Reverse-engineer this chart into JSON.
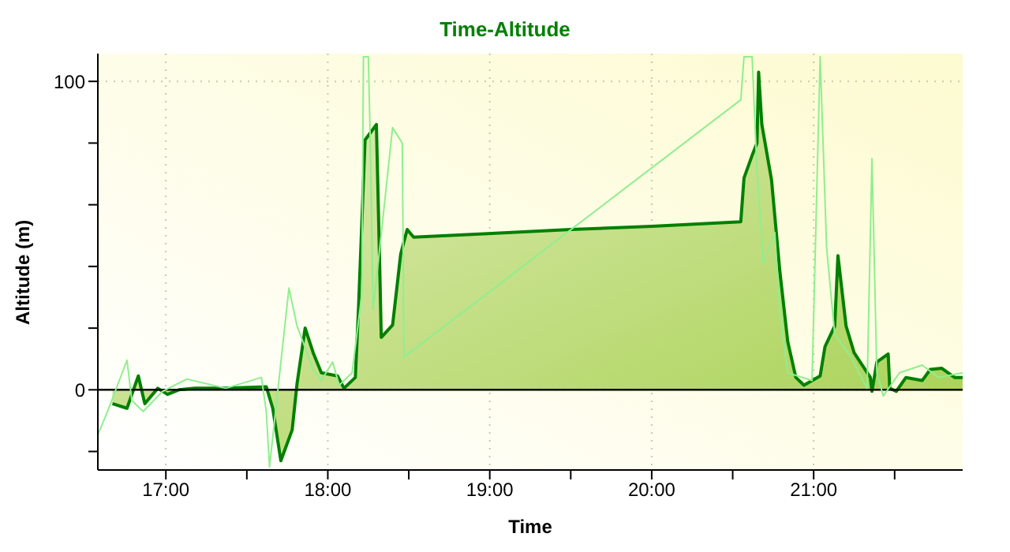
{
  "chart_data": {
    "type": "area",
    "title": "Time-Altitude",
    "xlabel": "Time",
    "ylabel": "Altitude (m)",
    "xlim": [
      16.58,
      21.92
    ],
    "ylim": [
      -26,
      109
    ],
    "xticks": [
      {
        "value": 17,
        "label": "17:00"
      },
      {
        "value": 17.5,
        "label": null
      },
      {
        "value": 18,
        "label": "18:00"
      },
      {
        "value": 18.5,
        "label": null
      },
      {
        "value": 19,
        "label": "19:00"
      },
      {
        "value": 19.5,
        "label": null
      },
      {
        "value": 20,
        "label": "20:00"
      },
      {
        "value": 20.5,
        "label": null
      },
      {
        "value": 21,
        "label": "21:00"
      },
      {
        "value": 21.5,
        "label": null
      }
    ],
    "yticks": [
      {
        "value": -20,
        "label": null
      },
      0,
      {
        "value": 20,
        "label": null
      },
      {
        "value": 40,
        "label": null
      },
      {
        "value": 60,
        "label": null
      },
      {
        "value": 80,
        "label": null
      },
      100
    ],
    "grid": true,
    "legend": false,
    "marker": "none",
    "line_style": "solid",
    "ref_lines": [
      {
        "axis": "y",
        "value": 0,
        "label": null,
        "color": "#000000"
      }
    ],
    "series": [
      {
        "color": "#008000",
        "x": [
          16.67,
          16.76,
          16.83,
          16.87,
          16.95,
          17.01,
          17.08,
          17.18,
          17.37,
          17.62,
          17.66,
          17.71,
          17.78,
          17.81,
          17.86,
          17.91,
          17.96,
          18.06,
          18.1,
          18.17,
          18.19,
          18.23,
          18.3,
          18.32,
          18.33,
          18.4,
          18.45,
          18.49,
          18.53,
          18.94,
          19.5,
          20,
          20.55,
          20.57,
          20.62,
          20.65,
          20.66,
          20.68,
          20.74,
          20.79,
          20.84,
          20.89,
          20.94,
          21.04,
          21.07,
          21.13,
          21.15,
          21.2,
          21.25,
          21.35,
          21.36,
          21.39,
          21.46,
          21.47,
          21.51,
          21.57,
          21.67,
          21.72,
          21.79,
          21.87,
          21.92
        ],
        "values": [
          -4.5,
          -6,
          4.5,
          -4.5,
          0.5,
          -1.5,
          0,
          0.5,
          0.5,
          1,
          -6,
          -23,
          -13,
          2,
          20,
          12,
          5.5,
          4.5,
          0.5,
          4,
          27,
          81,
          86,
          41,
          17,
          21,
          44,
          52,
          49.5,
          50.5,
          52,
          53,
          54.5,
          68.7,
          76,
          80,
          103,
          86,
          68,
          39,
          15.6,
          4,
          1.5,
          4.5,
          14,
          20.7,
          43.5,
          20.7,
          12,
          4,
          -0.5,
          9,
          11.6,
          0.5,
          -0.5,
          4,
          3,
          6.6,
          7,
          4,
          4
        ]
      },
      {
        "type": "line",
        "color": "#90ee90",
        "x": [
          16.58,
          16.64,
          16.76,
          16.79,
          16.86,
          16.98,
          17.13,
          17.37,
          17.59,
          17.62,
          17.64,
          17.76,
          17.81,
          17.91,
          17.96,
          18.03,
          18.07,
          18.15,
          18.21,
          18.22,
          18.25,
          18.26,
          18.28,
          18.4,
          18.46,
          18.47,
          20.55,
          20.57,
          20.62,
          20.65,
          20.69,
          20.76,
          20.79,
          20.84,
          20.99,
          21.04,
          21.08,
          21.13,
          21.23,
          21.33,
          21.36,
          21.39,
          21.43,
          21.53,
          21.67,
          21.77,
          21.92
        ],
        "values": [
          -14.6,
          -7,
          9.6,
          -3.5,
          -7,
          -0.5,
          3.5,
          0.5,
          4,
          -7,
          -25,
          33,
          20.7,
          6.6,
          3,
          9,
          1.5,
          5.5,
          31,
          108,
          108,
          86,
          26,
          85,
          80,
          10.6,
          94,
          108,
          108,
          71,
          41,
          51,
          26,
          5.5,
          3,
          108,
          46,
          18,
          10.6,
          0.5,
          75,
          5.5,
          -2,
          5.5,
          8,
          4,
          5.5
        ]
      }
    ]
  }
}
